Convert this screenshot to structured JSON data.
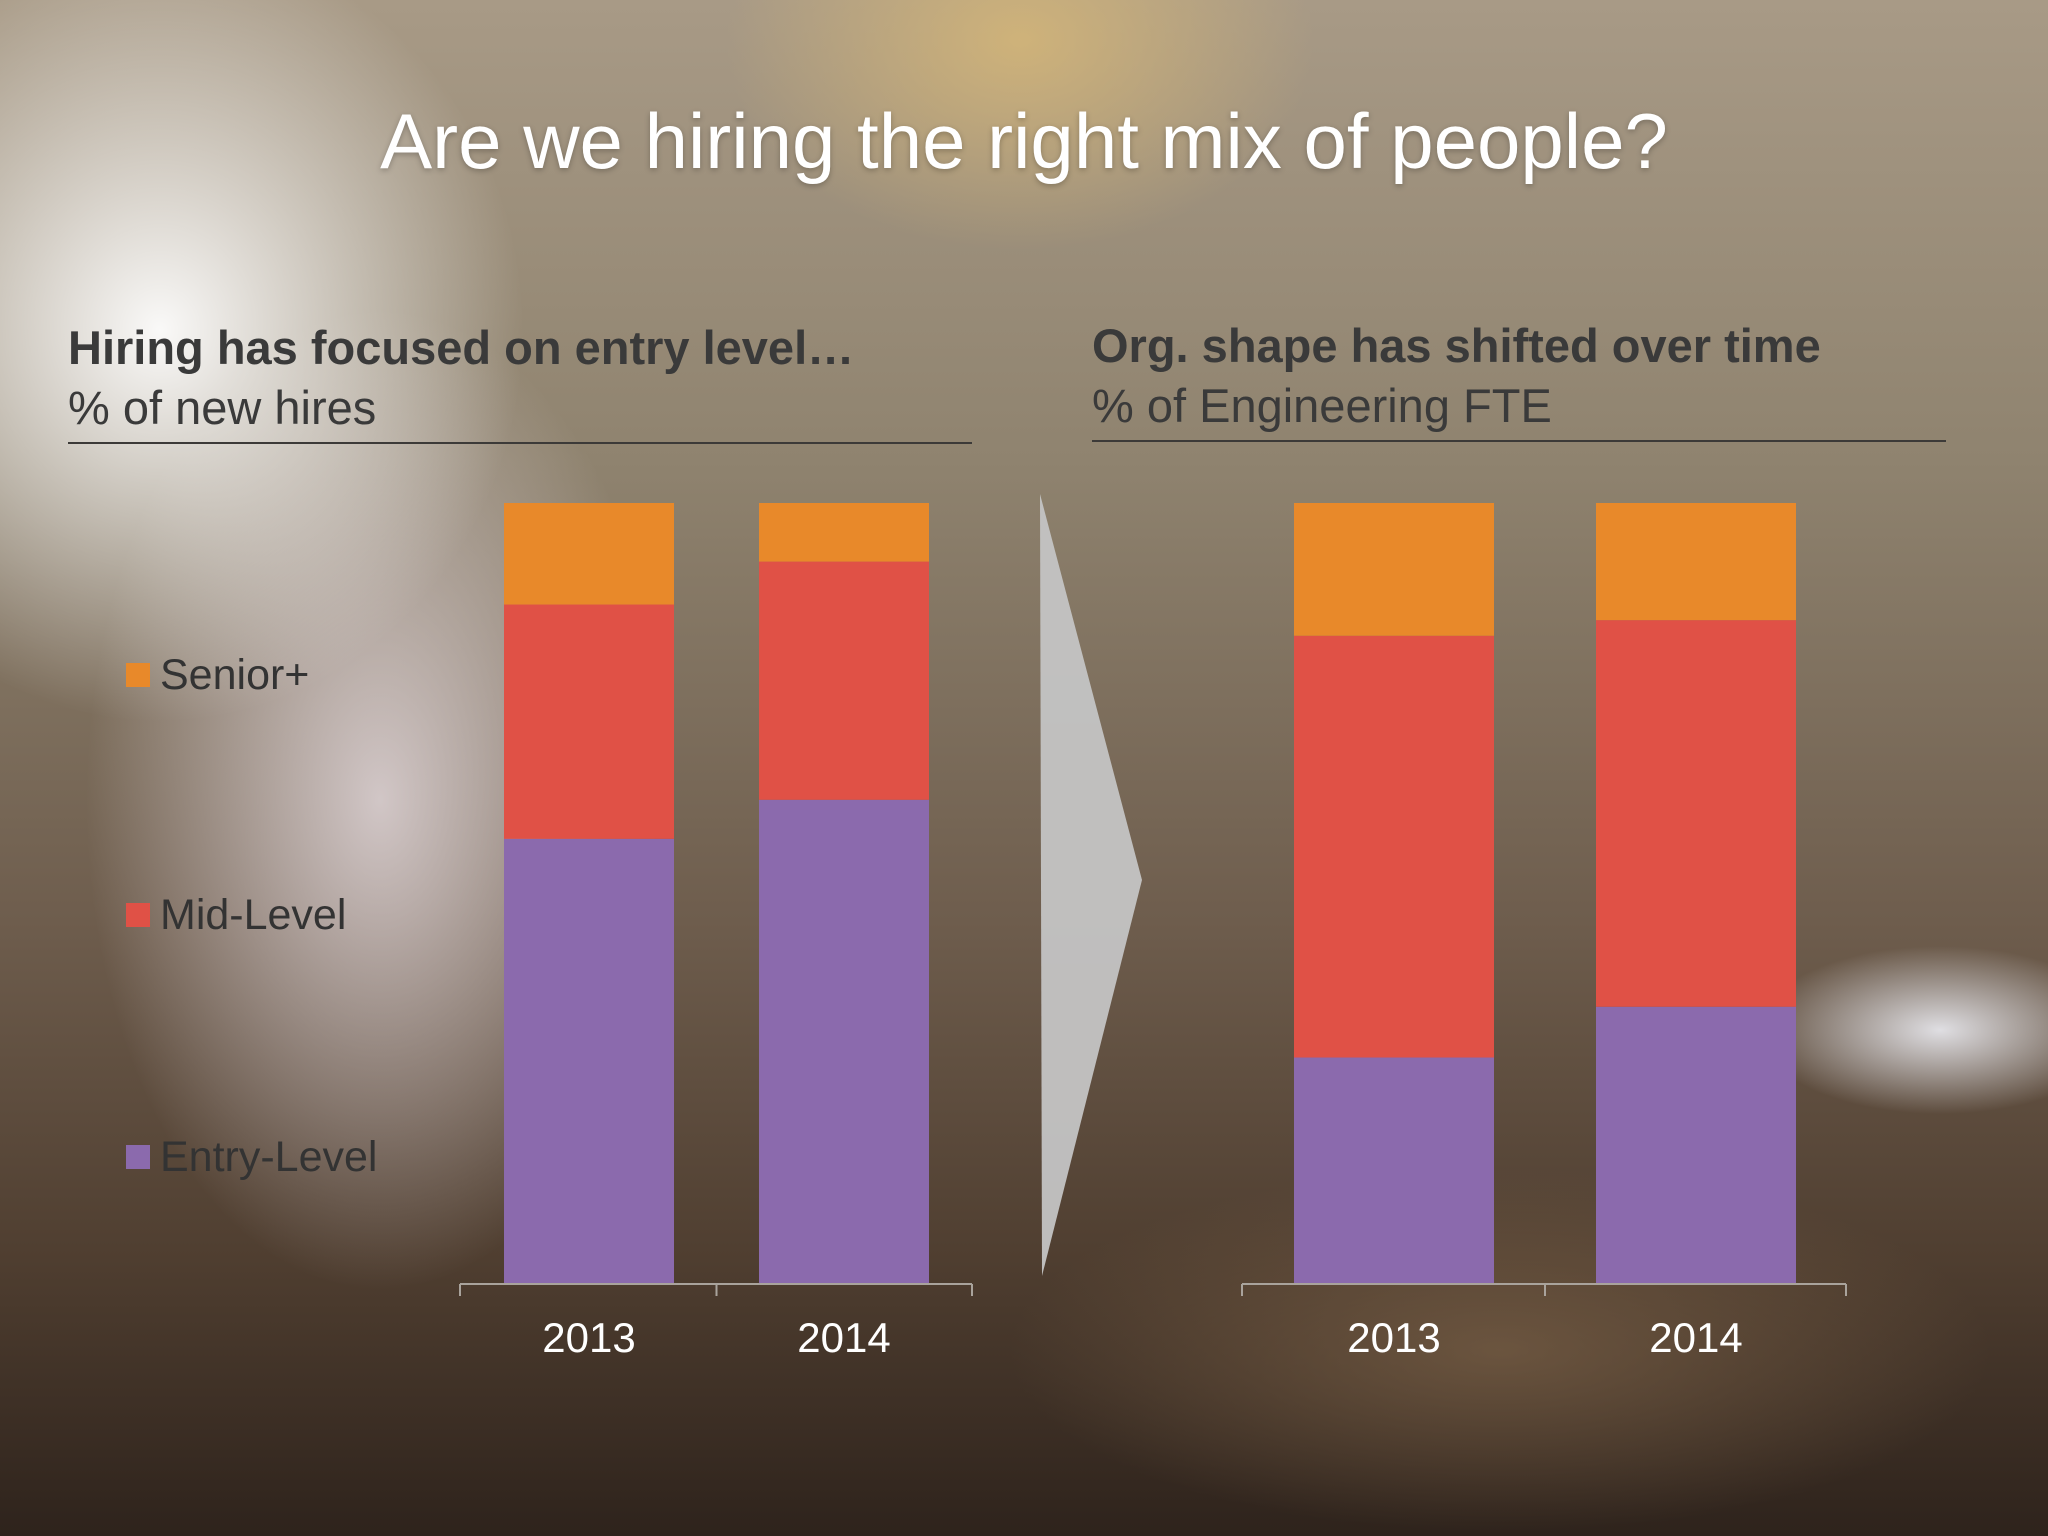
{
  "slide": {
    "title": "Are we hiring the right mix of people?"
  },
  "panels": {
    "left": {
      "heading": "Hiring has focused on entry level…",
      "subheading": "% of new hires"
    },
    "right": {
      "heading": "Org. shape has shifted over time",
      "subheading": "% of Engineering FTE"
    }
  },
  "legend": [
    {
      "label": "Senior+",
      "color": "#e8892a"
    },
    {
      "label": "Mid-Level",
      "color": "#e05146"
    },
    {
      "label": "Entry-Level",
      "color": "#8b6aad"
    }
  ],
  "chart_data": [
    {
      "type": "bar",
      "stacked": true,
      "categories": [
        "2013",
        "2014"
      ],
      "series": [
        {
          "name": "Entry-Level",
          "color": "#8b6aad",
          "values": [
            57,
            62
          ]
        },
        {
          "name": "Mid-Level",
          "color": "#e05146",
          "values": [
            30,
            30.5
          ]
        },
        {
          "name": "Senior+",
          "color": "#e8892a",
          "values": [
            13,
            7.5
          ]
        }
      ],
      "title": "Hiring has focused on entry level…",
      "subtitle": "% of new hires",
      "ylim": [
        0,
        100
      ],
      "grid": false,
      "legend": "left"
    },
    {
      "type": "bar",
      "stacked": true,
      "categories": [
        "2013",
        "2014"
      ],
      "series": [
        {
          "name": "Entry-Level",
          "color": "#8b6aad",
          "values": [
            29,
            35.5
          ]
        },
        {
          "name": "Mid-Level",
          "color": "#e05146",
          "values": [
            54,
            49.5
          ]
        },
        {
          "name": "Senior+",
          "color": "#e8892a",
          "values": [
            17,
            15
          ]
        }
      ],
      "title": "Org. shape has shifted over time",
      "subtitle": "% of Engineering FTE",
      "ylim": [
        0,
        100
      ],
      "grid": false,
      "legend": "none"
    }
  ]
}
